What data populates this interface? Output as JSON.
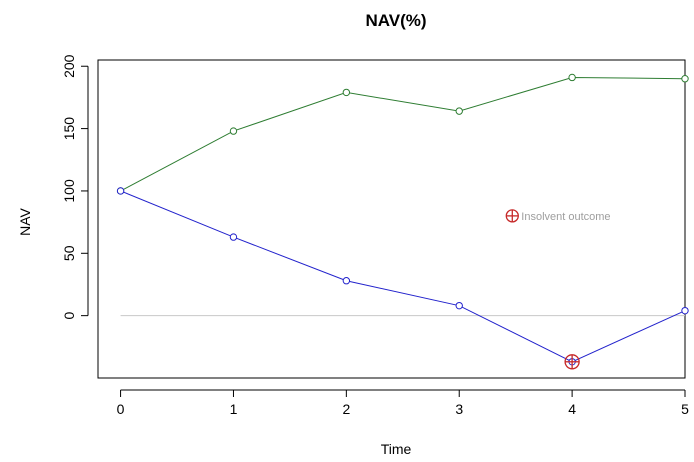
{
  "chart_data": {
    "type": "line",
    "title": "NAV(%)",
    "xlabel": "Time",
    "ylabel": "NAV",
    "x": [
      0,
      1,
      2,
      3,
      4,
      5
    ],
    "xlim": [
      -0.2,
      5.0
    ],
    "ylim": [
      -50,
      205
    ],
    "xticks": [
      "0",
      "1",
      "2",
      "3",
      "4",
      "5"
    ],
    "yticks": [
      "0",
      "50",
      "100",
      "150",
      "200"
    ],
    "grid": false,
    "series": [
      {
        "color": "#2e7d32",
        "values": [
          100,
          148,
          179,
          164,
          191,
          190
        ]
      },
      {
        "color": "#2222cc",
        "values": [
          100,
          63,
          28,
          8,
          -37,
          4
        ]
      }
    ],
    "reference_line": {
      "y": 0,
      "color": "#c8c8c8"
    },
    "annotations": [
      {
        "text": "Insolvent outcome",
        "x": 4,
        "y": -37,
        "marker": "circled-plus",
        "color": "#c62828"
      }
    ],
    "legend_annotation": {
      "text": "Insolvent outcome",
      "x": 3.47,
      "y": 80,
      "color": "#c62828",
      "text_color": "#9e9e9e"
    }
  }
}
